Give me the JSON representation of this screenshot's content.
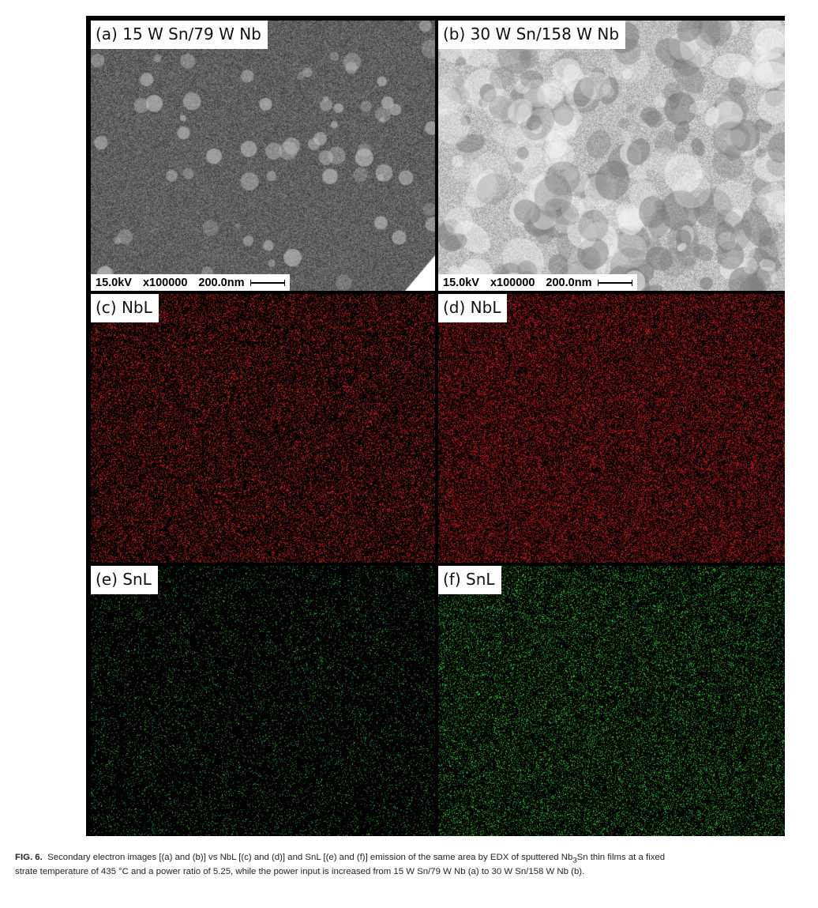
{
  "panels": [
    {
      "id": "a",
      "label": "(a) 15 W Sn/79 W Nb",
      "kind": "sem",
      "tone": "dark",
      "scale": {
        "kv": "15.0kV",
        "mag": "x100000",
        "len": "200.0nm"
      }
    },
    {
      "id": "b",
      "label": "(b) 30 W Sn/158 W Nb",
      "kind": "sem",
      "tone": "bright",
      "scale": {
        "kv": "15.0kV",
        "mag": "x100000",
        "len": "200.0nm"
      }
    },
    {
      "id": "c",
      "label": "(c) NbL",
      "kind": "edx",
      "color": "#e02424",
      "density": 0.26
    },
    {
      "id": "d",
      "label": "(d) NbL",
      "kind": "edx",
      "color": "#d21e1e",
      "density": 0.36
    },
    {
      "id": "e",
      "label": "(e) SnL",
      "kind": "edx",
      "color": "#2ed03a",
      "density": 0.07
    },
    {
      "id": "f",
      "label": "(f) SnL",
      "kind": "edx",
      "color": "#33d83c",
      "density": 0.18
    }
  ],
  "caption": {
    "fig_label": "FIG. 6.",
    "line1_a": "Secondary electron images [(a) and (b)] vs NbL [(c) and (d)] and SnL [(e) and (f)] emission of the same area by EDX of sputtered Nb",
    "line1_sub": "3",
    "line1_b": "Sn thin films at a fixed",
    "line2": "strate temperature of 435 °C and a power ratio of 5.25, while the power input is increased from 15 W Sn/79 W Nb (a) to 30 W Sn/158 W Nb (b)."
  }
}
